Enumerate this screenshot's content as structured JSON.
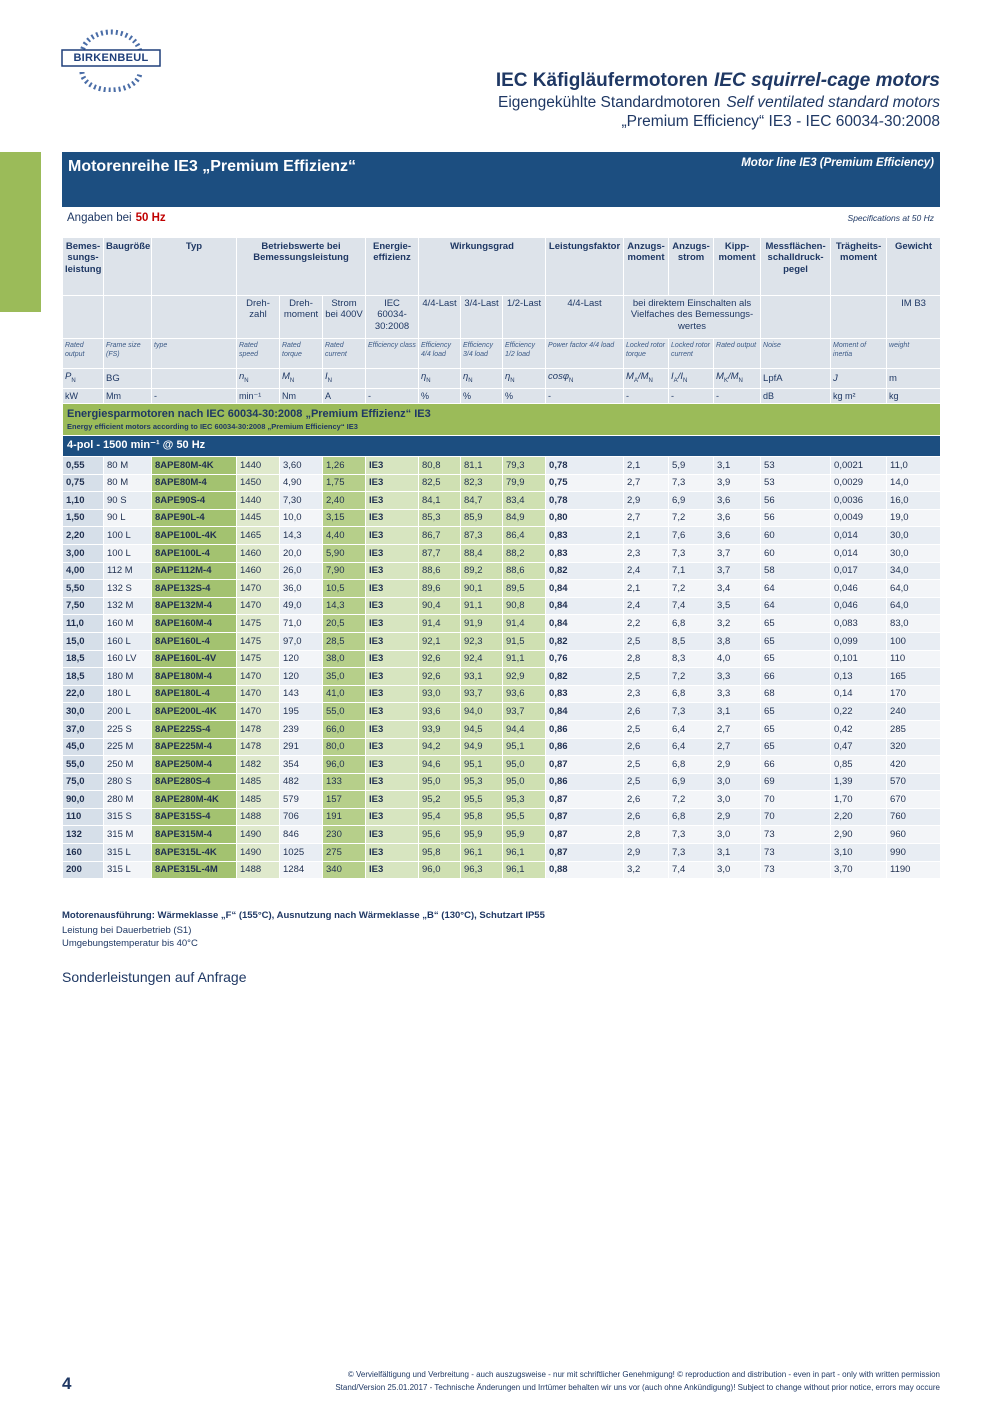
{
  "logo": "BIRKENBEUL",
  "header": {
    "title_de": "IEC Käfigläufermotoren",
    "title_en": "IEC squirrel-cage motors",
    "subtitle_de": "Eigengekühlte Standardmotoren",
    "subtitle_en": "Self ventilated standard motors",
    "standard": "„Premium Efficiency“ IE3 - IEC 60034-30:2008"
  },
  "banner": {
    "title": "Motorenreihe IE3 „Premium Effizienz“",
    "title_en": "Motor line IE3 (Premium Efficiency)"
  },
  "spec": {
    "label": "Angaben bei",
    "frequency": "50 Hz",
    "label_en": "Specifications at 50 Hz"
  },
  "table": {
    "header_de": [
      "Bemes-sungs-leistung",
      "Baugröße",
      "Typ",
      "Betriebswerte bei Bemessungsleistung",
      "Energie-effizienz",
      "Wirkungsgrad",
      "Leistungsfaktor",
      "Anzugs-moment",
      "Anzugs-strom",
      "Kipp-moment",
      "Messflächen-schalldruck-pegel",
      "Trägheits-moment",
      "Gewicht"
    ],
    "header_sub": [
      "Dreh-zahl",
      "Dreh-moment",
      "Strom bei 400V",
      "IEC 60034-30:2008",
      "4/4-Last",
      "3/4-Last",
      "1/2-Last",
      "4/4-Last",
      "bei direktem Einschalten als Vielfaches des Bemessungs-wertes",
      "IM B3"
    ],
    "header_en": [
      "Rated output",
      "Frame size (FS)",
      "type",
      "Rated speed",
      "Rated torque",
      "Rated current",
      "Efficiency class",
      "Efficiency 4/4 load",
      "Efficiency 3/4 load",
      "Efficiency 1/2 load",
      "Power factor 4/4 load",
      "Locked rotor torque",
      "Locked rotor current",
      "Rated output",
      "Noise",
      "Moment of inertia",
      "weight"
    ],
    "symbols": [
      [
        "P",
        "N"
      ],
      [
        "BG"
      ],
      [
        "n",
        "N"
      ],
      [
        "M",
        "N"
      ],
      [
        "I",
        "N"
      ],
      [
        "η",
        "N"
      ],
      [
        "η",
        "N"
      ],
      [
        "η",
        "N"
      ],
      [
        "cosφ",
        "N"
      ],
      [
        "M",
        "A",
        "/M",
        "N"
      ],
      [
        "I",
        "A",
        "/I",
        "N"
      ],
      [
        "M",
        "K",
        "/M",
        "N"
      ],
      [
        "LpfA"
      ],
      [
        "J"
      ],
      [
        "m"
      ]
    ],
    "units": [
      "kW",
      "Mm",
      "-",
      "min⁻¹",
      "Nm",
      "A",
      "-",
      "%",
      "%",
      "%",
      "-",
      "-",
      "-",
      "-",
      "dB",
      "kg m²",
      "kg"
    ],
    "section": {
      "title": "Energiesparmotoren nach IEC 60034-30:2008 „Premium Effizienz“ IE3",
      "subtitle": "Energy efficient motors according to IEC 60034-30:2008 „Premium Efficiency“ IE3"
    },
    "group": "4-pol - 1500 min⁻¹ @ 50 Hz",
    "rows": [
      [
        "0,55",
        "80 M",
        "8APE80M-4K",
        "1440",
        "3,60",
        "1,26",
        "IE3",
        "80,8",
        "81,1",
        "79,3",
        "0,78",
        "2,1",
        "5,9",
        "3,1",
        "53",
        "0,0021",
        "11,0"
      ],
      [
        "0,75",
        "80 M",
        "8APE80M-4",
        "1450",
        "4,90",
        "1,75",
        "IE3",
        "82,5",
        "82,3",
        "79,9",
        "0,75",
        "2,7",
        "7,3",
        "3,9",
        "53",
        "0,0029",
        "14,0"
      ],
      [
        "1,10",
        "90 S",
        "8APE90S-4",
        "1440",
        "7,30",
        "2,40",
        "IE3",
        "84,1",
        "84,7",
        "83,4",
        "0,78",
        "2,9",
        "6,9",
        "3,6",
        "56",
        "0,0036",
        "16,0"
      ],
      [
        "1,50",
        "90 L",
        "8APE90L-4",
        "1445",
        "10,0",
        "3,15",
        "IE3",
        "85,3",
        "85,9",
        "84,9",
        "0,80",
        "2,7",
        "7,2",
        "3,6",
        "56",
        "0,0049",
        "19,0"
      ],
      [
        "2,20",
        "100 L",
        "8APE100L-4K",
        "1465",
        "14,3",
        "4,40",
        "IE3",
        "86,7",
        "87,3",
        "86,4",
        "0,83",
        "2,1",
        "7,6",
        "3,6",
        "60",
        "0,014",
        "30,0"
      ],
      [
        "3,00",
        "100 L",
        "8APE100L-4",
        "1460",
        "20,0",
        "5,90",
        "IE3",
        "87,7",
        "88,4",
        "88,2",
        "0,83",
        "2,3",
        "7,3",
        "3,7",
        "60",
        "0,014",
        "30,0"
      ],
      [
        "4,00",
        "112 M",
        "8APE112M-4",
        "1460",
        "26,0",
        "7,90",
        "IE3",
        "88,6",
        "89,2",
        "88,6",
        "0,82",
        "2,4",
        "7,1",
        "3,7",
        "58",
        "0,017",
        "34,0"
      ],
      [
        "5,50",
        "132 S",
        "8APE132S-4",
        "1470",
        "36,0",
        "10,5",
        "IE3",
        "89,6",
        "90,1",
        "89,5",
        "0,84",
        "2,1",
        "7,2",
        "3,4",
        "64",
        "0,046",
        "64,0"
      ],
      [
        "7,50",
        "132 M",
        "8APE132M-4",
        "1470",
        "49,0",
        "14,3",
        "IE3",
        "90,4",
        "91,1",
        "90,8",
        "0,84",
        "2,4",
        "7,4",
        "3,5",
        "64",
        "0,046",
        "64,0"
      ],
      [
        "11,0",
        "160 M",
        "8APE160M-4",
        "1475",
        "71,0",
        "20,5",
        "IE3",
        "91,4",
        "91,9",
        "91,4",
        "0,84",
        "2,2",
        "6,8",
        "3,2",
        "65",
        "0,083",
        "83,0"
      ],
      [
        "15,0",
        "160 L",
        "8APE160L-4",
        "1475",
        "97,0",
        "28,5",
        "IE3",
        "92,1",
        "92,3",
        "91,5",
        "0,82",
        "2,5",
        "8,5",
        "3,8",
        "65",
        "0,099",
        "100"
      ],
      [
        "18,5",
        "160 LV",
        "8APE160L-4V",
        "1475",
        "120",
        "38,0",
        "IE3",
        "92,6",
        "92,4",
        "91,1",
        "0,76",
        "2,8",
        "8,3",
        "4,0",
        "65",
        "0,101",
        "110"
      ],
      [
        "18,5",
        "180 M",
        "8APE180M-4",
        "1470",
        "120",
        "35,0",
        "IE3",
        "92,6",
        "93,1",
        "92,9",
        "0,82",
        "2,5",
        "7,2",
        "3,3",
        "66",
        "0,13",
        "165"
      ],
      [
        "22,0",
        "180 L",
        "8APE180L-4",
        "1470",
        "143",
        "41,0",
        "IE3",
        "93,0",
        "93,7",
        "93,6",
        "0,83",
        "2,3",
        "6,8",
        "3,3",
        "68",
        "0,14",
        "170"
      ],
      [
        "30,0",
        "200 L",
        "8APE200L-4K",
        "1470",
        "195",
        "55,0",
        "IE3",
        "93,6",
        "94,0",
        "93,7",
        "0,84",
        "2,6",
        "7,3",
        "3,1",
        "65",
        "0,22",
        "240"
      ],
      [
        "37,0",
        "225 S",
        "8APE225S-4",
        "1478",
        "239",
        "66,0",
        "IE3",
        "93,9",
        "94,5",
        "94,4",
        "0,86",
        "2,5",
        "6,4",
        "2,7",
        "65",
        "0,42",
        "285"
      ],
      [
        "45,0",
        "225 M",
        "8APE225M-4",
        "1478",
        "291",
        "80,0",
        "IE3",
        "94,2",
        "94,9",
        "95,1",
        "0,86",
        "2,6",
        "6,4",
        "2,7",
        "65",
        "0,47",
        "320"
      ],
      [
        "55,0",
        "250 M",
        "8APE250M-4",
        "1482",
        "354",
        "96,0",
        "IE3",
        "94,6",
        "95,1",
        "95,0",
        "0,87",
        "2,5",
        "6,8",
        "2,9",
        "66",
        "0,85",
        "420"
      ],
      [
        "75,0",
        "280 S",
        "8APE280S-4",
        "1485",
        "482",
        "133",
        "IE3",
        "95,0",
        "95,3",
        "95,0",
        "0,86",
        "2,5",
        "6,9",
        "3,0",
        "69",
        "1,39",
        "570"
      ],
      [
        "90,0",
        "280 M",
        "8APE280M-4K",
        "1485",
        "579",
        "157",
        "IE3",
        "95,2",
        "95,5",
        "95,3",
        "0,87",
        "2,6",
        "7,2",
        "3,0",
        "70",
        "1,70",
        "670"
      ],
      [
        "110",
        "315 S",
        "8APE315S-4",
        "1488",
        "706",
        "191",
        "IE3",
        "95,4",
        "95,8",
        "95,5",
        "0,87",
        "2,6",
        "6,8",
        "2,9",
        "70",
        "2,20",
        "760"
      ],
      [
        "132",
        "315 M",
        "8APE315M-4",
        "1490",
        "846",
        "230",
        "IE3",
        "95,6",
        "95,9",
        "95,9",
        "0,87",
        "2,8",
        "7,3",
        "3,0",
        "73",
        "2,90",
        "960"
      ],
      [
        "160",
        "315 L",
        "8APE315L-4K",
        "1490",
        "1025",
        "275",
        "IE3",
        "95,8",
        "96,1",
        "96,1",
        "0,87",
        "2,9",
        "7,3",
        "3,1",
        "73",
        "3,10",
        "990"
      ],
      [
        "200",
        "315 L",
        "8APE315L-4M",
        "1488",
        "1284",
        "340",
        "IE3",
        "96,0",
        "96,3",
        "96,1",
        "0,88",
        "3,2",
        "7,4",
        "3,0",
        "73",
        "3,70",
        "1190"
      ]
    ]
  },
  "notes": [
    "Motorenausführung: Wärmeklasse „F“ (155°C), Ausnutzung nach Wärmeklasse „B“ (130°C), Schutzart IP55",
    "Leistung bei Dauerbetrieb (S1)",
    "Umgebungstemperatur bis 40°C"
  ],
  "extra": "Sonderleistungen auf Anfrage",
  "footer": {
    "page": "4",
    "lines": [
      "© Vervielfältigung und Verbreitung - auch auszugsweise - nur mit schriftlicher Genehmigung! © reproduction and distribution - even in part - only with written permission",
      "Stand/Version 25.01.2017 - Technische Änderungen und Irrtümer behalten wir uns vor (auch ohne Ankündigung)! Subject to change without prior notice, errors may occure"
    ]
  }
}
